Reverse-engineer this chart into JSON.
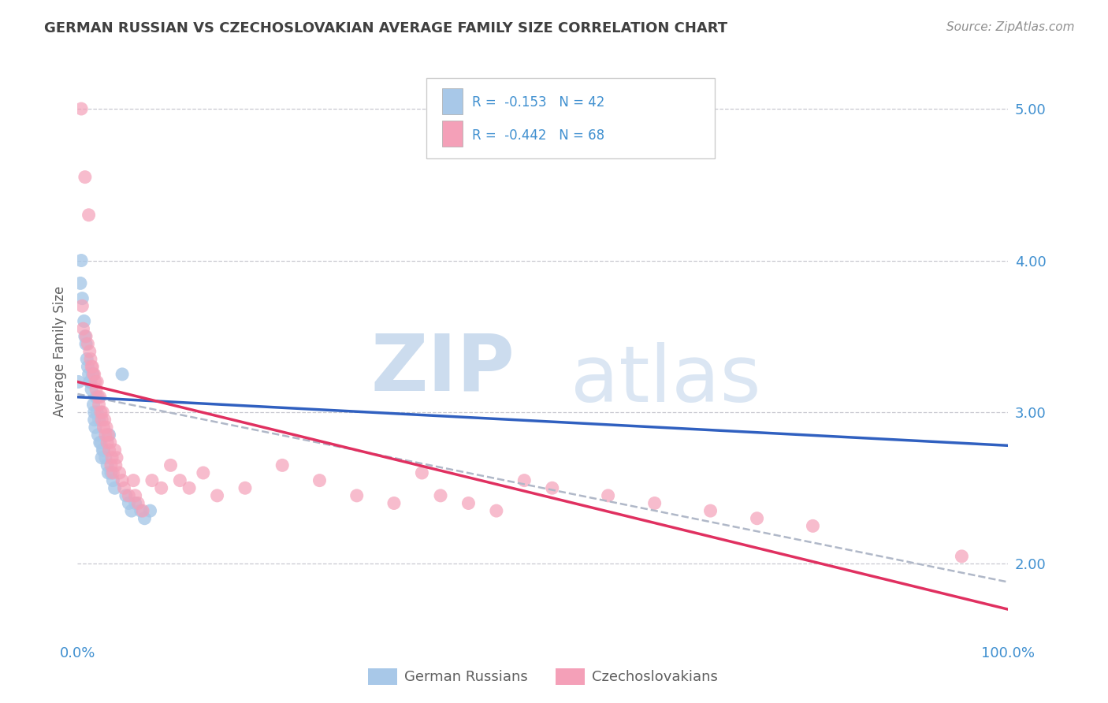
{
  "title": "GERMAN RUSSIAN VS CZECHOSLOVAKIAN AVERAGE FAMILY SIZE CORRELATION CHART",
  "source": "Source: ZipAtlas.com",
  "ylabel": "Average Family Size",
  "xlim": [
    0,
    1.0
  ],
  "ylim": [
    1.5,
    5.3
  ],
  "ytick_labels": [
    "2.00",
    "3.00",
    "4.00",
    "5.00"
  ],
  "ytick_values": [
    2.0,
    3.0,
    4.0,
    5.0
  ],
  "legend_label1": "German Russians",
  "legend_label2": "Czechoslovakians",
  "blue_color": "#a8c8e8",
  "pink_color": "#f4a0b8",
  "blue_line_color": "#3060c0",
  "pink_line_color": "#e03060",
  "dashed_line_color": "#b0b8c8",
  "background_color": "#ffffff",
  "grid_color": "#c8c8d0",
  "title_color": "#404040",
  "source_color": "#909090",
  "axis_color": "#4090d0",
  "blue_line_x0": 0.0,
  "blue_line_y0": 3.1,
  "blue_line_x1": 1.0,
  "blue_line_y1": 2.78,
  "pink_line_x0": 0.0,
  "pink_line_y0": 3.2,
  "pink_line_x1": 1.0,
  "pink_line_y1": 1.7,
  "dash_line_x0": 0.0,
  "dash_line_y0": 3.12,
  "dash_line_x1": 1.0,
  "dash_line_y1": 1.88,
  "blue_points": [
    [
      0.001,
      3.2
    ],
    [
      0.003,
      3.85
    ],
    [
      0.004,
      4.0
    ],
    [
      0.005,
      3.75
    ],
    [
      0.007,
      3.6
    ],
    [
      0.008,
      3.5
    ],
    [
      0.009,
      3.45
    ],
    [
      0.01,
      3.35
    ],
    [
      0.011,
      3.3
    ],
    [
      0.012,
      3.25
    ],
    [
      0.013,
      3.2
    ],
    [
      0.014,
      3.2
    ],
    [
      0.015,
      3.15
    ],
    [
      0.016,
      3.25
    ],
    [
      0.017,
      3.05
    ],
    [
      0.018,
      3.0
    ],
    [
      0.018,
      2.95
    ],
    [
      0.019,
      2.9
    ],
    [
      0.02,
      3.1
    ],
    [
      0.021,
      3.0
    ],
    [
      0.022,
      2.85
    ],
    [
      0.023,
      2.95
    ],
    [
      0.024,
      2.8
    ],
    [
      0.025,
      2.8
    ],
    [
      0.026,
      2.7
    ],
    [
      0.027,
      2.75
    ],
    [
      0.028,
      2.75
    ],
    [
      0.03,
      2.7
    ],
    [
      0.032,
      2.65
    ],
    [
      0.033,
      2.6
    ],
    [
      0.034,
      2.85
    ],
    [
      0.036,
      2.6
    ],
    [
      0.038,
      2.55
    ],
    [
      0.04,
      2.5
    ],
    [
      0.048,
      3.25
    ],
    [
      0.052,
      2.45
    ],
    [
      0.055,
      2.4
    ],
    [
      0.058,
      2.35
    ],
    [
      0.062,
      2.4
    ],
    [
      0.068,
      2.35
    ],
    [
      0.072,
      2.3
    ],
    [
      0.078,
      2.35
    ]
  ],
  "pink_points": [
    [
      0.004,
      5.0
    ],
    [
      0.008,
      4.55
    ],
    [
      0.012,
      4.3
    ],
    [
      0.005,
      3.7
    ],
    [
      0.006,
      3.55
    ],
    [
      0.009,
      3.5
    ],
    [
      0.011,
      3.45
    ],
    [
      0.013,
      3.4
    ],
    [
      0.014,
      3.35
    ],
    [
      0.015,
      3.3
    ],
    [
      0.016,
      3.3
    ],
    [
      0.017,
      3.25
    ],
    [
      0.018,
      3.25
    ],
    [
      0.019,
      3.2
    ],
    [
      0.02,
      3.15
    ],
    [
      0.021,
      3.2
    ],
    [
      0.022,
      3.1
    ],
    [
      0.023,
      3.05
    ],
    [
      0.024,
      3.1
    ],
    [
      0.025,
      3.0
    ],
    [
      0.026,
      2.95
    ],
    [
      0.027,
      3.0
    ],
    [
      0.028,
      2.9
    ],
    [
      0.029,
      2.95
    ],
    [
      0.03,
      2.85
    ],
    [
      0.031,
      2.9
    ],
    [
      0.032,
      2.8
    ],
    [
      0.033,
      2.85
    ],
    [
      0.034,
      2.75
    ],
    [
      0.035,
      2.8
    ],
    [
      0.036,
      2.65
    ],
    [
      0.037,
      2.7
    ],
    [
      0.038,
      2.6
    ],
    [
      0.04,
      2.75
    ],
    [
      0.041,
      2.65
    ],
    [
      0.042,
      2.7
    ],
    [
      0.045,
      2.6
    ],
    [
      0.048,
      2.55
    ],
    [
      0.05,
      2.5
    ],
    [
      0.055,
      2.45
    ],
    [
      0.06,
      2.55
    ],
    [
      0.062,
      2.45
    ],
    [
      0.065,
      2.4
    ],
    [
      0.07,
      2.35
    ],
    [
      0.08,
      2.55
    ],
    [
      0.09,
      2.5
    ],
    [
      0.1,
      2.65
    ],
    [
      0.11,
      2.55
    ],
    [
      0.12,
      2.5
    ],
    [
      0.135,
      2.6
    ],
    [
      0.15,
      2.45
    ],
    [
      0.18,
      2.5
    ],
    [
      0.22,
      2.65
    ],
    [
      0.26,
      2.55
    ],
    [
      0.3,
      2.45
    ],
    [
      0.34,
      2.4
    ],
    [
      0.37,
      2.6
    ],
    [
      0.39,
      2.45
    ],
    [
      0.42,
      2.4
    ],
    [
      0.45,
      2.35
    ],
    [
      0.48,
      2.55
    ],
    [
      0.51,
      2.5
    ],
    [
      0.57,
      2.45
    ],
    [
      0.62,
      2.4
    ],
    [
      0.68,
      2.35
    ],
    [
      0.73,
      2.3
    ],
    [
      0.79,
      2.25
    ],
    [
      0.95,
      2.05
    ]
  ]
}
